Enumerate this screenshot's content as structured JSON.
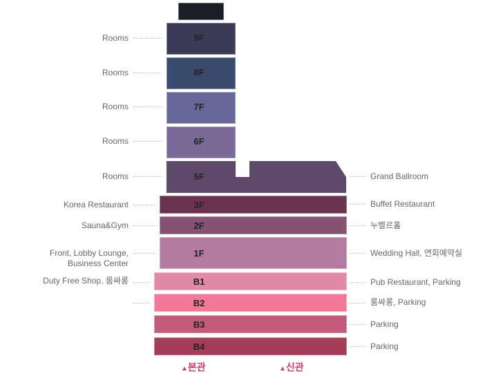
{
  "floors": {
    "f9": {
      "label": "9F",
      "color": "#3b3b58"
    },
    "f8": {
      "label": "8F",
      "color": "#3a4a6e"
    },
    "f7": {
      "label": "7F",
      "color": "#676898"
    },
    "f6": {
      "label": "6F",
      "color": "#7a6a9a"
    },
    "f5": {
      "label": "5F",
      "color": "#5f4a6c"
    },
    "f3": {
      "label": "3F",
      "color": "#6a344f"
    },
    "f2": {
      "label": "2F",
      "color": "#865272"
    },
    "f1": {
      "label": "1F",
      "color": "#b47ba0"
    },
    "b1": {
      "label": "B1",
      "color": "#e08aaa"
    },
    "b2": {
      "label": "B2",
      "color": "#f27898"
    },
    "b3": {
      "label": "B3",
      "color": "#c45a7a"
    },
    "b4": {
      "label": "B4",
      "color": "#a53d58"
    }
  },
  "left": {
    "f9": "Rooms",
    "f8": "Rooms",
    "f7": "Rooms",
    "f6": "Rooms",
    "f5": "Rooms",
    "f3": "Korea Restaurant",
    "f2": "Sauna&Gym",
    "f1a": "Front, Lobby Lounge,",
    "f1b": "Business Center",
    "b1": "Duty Free Shop, 룸싸롱",
    "b2": ""
  },
  "right": {
    "f5": "Grand Ballroom",
    "f3": "Buffet Restaurant",
    "f2": "누벨르홀",
    "f1": "Wedding Hall, 연회예약실",
    "b1": "Pub Restaurant, Parking",
    "b2": "룸싸롱, Parking",
    "b3": "Parking",
    "b4": "Parking"
  },
  "legend": {
    "main": "본관",
    "new": "신관",
    "marker": "▲",
    "color": "#c0406a"
  }
}
